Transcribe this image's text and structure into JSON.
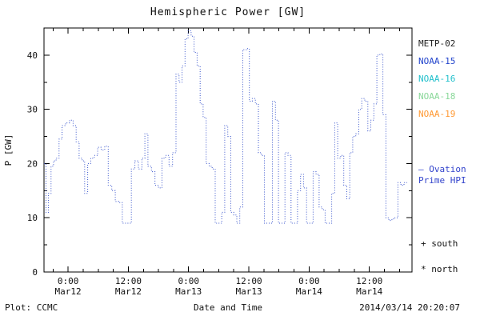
{
  "footer": {
    "left": "Plot: CCMC",
    "right": "2014/03/14 20:20:07"
  },
  "legend": {
    "satellites": [
      {
        "label": "METP-02",
        "color": "#222222"
      },
      {
        "label": "NOAA-15",
        "color": "#2244cc"
      },
      {
        "label": "NOAA-16",
        "color": "#22c0cc"
      },
      {
        "label": "NOAA-18",
        "color": "#8ad89a"
      },
      {
        "label": "NOAA-19",
        "color": "#ff9933"
      }
    ],
    "ovation": {
      "text": "— Ovation Prime HPI",
      "color": "#3344cc"
    },
    "markers": [
      {
        "symbol": "+",
        "label": "south"
      },
      {
        "symbol": "*",
        "label": "north"
      }
    ]
  },
  "chart_data": {
    "type": "line",
    "style": "dotted-step",
    "title": "Hemispheric Power [GW]",
    "xlabel": "Date and Time",
    "ylabel": "P [GW]",
    "ylim": [
      0,
      45
    ],
    "xlim": [
      -4.8,
      68.5
    ],
    "y_ticks": [
      0,
      10,
      20,
      30,
      40
    ],
    "y_minor": 5,
    "x_minor_hours": 3,
    "x_ticks": [
      {
        "hour": 0,
        "time": "0:00",
        "date": "Mar12"
      },
      {
        "hour": 12,
        "time": "12:00",
        "date": "Mar12"
      },
      {
        "hour": 24,
        "time": "0:00",
        "date": "Mar13"
      },
      {
        "hour": 36,
        "time": "12:00",
        "date": "Mar13"
      },
      {
        "hour": 48,
        "time": "0:00",
        "date": "Mar14"
      },
      {
        "hour": 60,
        "time": "12:00",
        "date": "Mar14"
      }
    ],
    "series": [
      {
        "name": "Ovation Prime HPI",
        "color": "#3a55cc",
        "points": [
          [
            -4.8,
            20
          ],
          [
            -4.4,
            11
          ],
          [
            -3.9,
            14.5
          ],
          [
            -3.4,
            19.5
          ],
          [
            -2.9,
            20.5
          ],
          [
            -2.4,
            21
          ],
          [
            -1.8,
            24.5
          ],
          [
            -1.2,
            27
          ],
          [
            -0.5,
            27.5
          ],
          [
            0.3,
            28
          ],
          [
            1.0,
            27
          ],
          [
            1.6,
            24
          ],
          [
            2.2,
            21
          ],
          [
            2.8,
            20.5
          ],
          [
            3.3,
            14.5
          ],
          [
            3.9,
            20
          ],
          [
            4.5,
            21
          ],
          [
            5.2,
            21.5
          ],
          [
            5.9,
            23
          ],
          [
            6.6,
            22.5
          ],
          [
            7.3,
            23.2
          ],
          [
            8.0,
            16
          ],
          [
            8.7,
            15
          ],
          [
            9.4,
            13
          ],
          [
            10.1,
            12.8
          ],
          [
            10.8,
            9
          ],
          [
            11.9,
            9
          ],
          [
            12.6,
            19
          ],
          [
            13.3,
            20.5
          ],
          [
            14.0,
            19
          ],
          [
            14.7,
            21
          ],
          [
            15.3,
            25.5
          ],
          [
            15.9,
            19.5
          ],
          [
            16.6,
            18.5
          ],
          [
            17.3,
            16
          ],
          [
            18.0,
            15.5
          ],
          [
            18.7,
            21
          ],
          [
            19.4,
            21.5
          ],
          [
            20.1,
            19.5
          ],
          [
            20.8,
            22
          ],
          [
            21.5,
            36.5
          ],
          [
            22.1,
            35
          ],
          [
            22.7,
            38
          ],
          [
            23.3,
            43
          ],
          [
            23.9,
            44.5
          ],
          [
            24.5,
            43.5
          ],
          [
            25.1,
            40.5
          ],
          [
            25.7,
            38
          ],
          [
            26.3,
            31
          ],
          [
            26.9,
            28.5
          ],
          [
            27.5,
            20
          ],
          [
            28.1,
            19.5
          ],
          [
            28.7,
            19
          ],
          [
            29.3,
            9
          ],
          [
            30.0,
            9
          ],
          [
            30.6,
            11
          ],
          [
            31.2,
            27
          ],
          [
            31.8,
            25
          ],
          [
            32.4,
            11
          ],
          [
            33.0,
            10.5
          ],
          [
            33.6,
            9
          ],
          [
            34.2,
            12
          ],
          [
            34.8,
            41
          ],
          [
            35.5,
            41.2
          ],
          [
            36.1,
            31.5
          ],
          [
            36.7,
            32
          ],
          [
            37.3,
            31
          ],
          [
            37.9,
            22
          ],
          [
            38.5,
            21.5
          ],
          [
            39.1,
            9
          ],
          [
            40.0,
            9
          ],
          [
            40.7,
            31.5
          ],
          [
            41.3,
            28
          ],
          [
            41.9,
            9
          ],
          [
            42.6,
            9
          ],
          [
            43.2,
            22
          ],
          [
            43.8,
            21.5
          ],
          [
            44.4,
            9
          ],
          [
            45.1,
            9
          ],
          [
            45.7,
            15
          ],
          [
            46.3,
            18
          ],
          [
            46.9,
            15.5
          ],
          [
            47.5,
            9
          ],
          [
            48.2,
            9
          ],
          [
            48.8,
            18.5
          ],
          [
            49.4,
            18
          ],
          [
            50.0,
            12
          ],
          [
            50.6,
            11.5
          ],
          [
            51.2,
            9
          ],
          [
            51.9,
            9
          ],
          [
            52.5,
            14.5
          ],
          [
            53.1,
            27.5
          ],
          [
            53.7,
            21
          ],
          [
            54.3,
            21.5
          ],
          [
            54.9,
            16
          ],
          [
            55.5,
            13.5
          ],
          [
            56.1,
            22
          ],
          [
            56.7,
            25
          ],
          [
            57.3,
            25.5
          ],
          [
            57.9,
            30
          ],
          [
            58.5,
            32
          ],
          [
            59.1,
            31.5
          ],
          [
            59.7,
            26
          ],
          [
            60.3,
            28
          ],
          [
            60.9,
            31
          ],
          [
            61.5,
            40
          ],
          [
            62.1,
            40.2
          ],
          [
            62.7,
            29
          ],
          [
            63.3,
            10
          ],
          [
            63.9,
            9.5
          ],
          [
            64.5,
            9.8
          ],
          [
            65.1,
            10
          ],
          [
            65.7,
            16.5
          ],
          [
            66.3,
            16
          ],
          [
            66.9,
            16.5
          ]
        ]
      }
    ]
  }
}
